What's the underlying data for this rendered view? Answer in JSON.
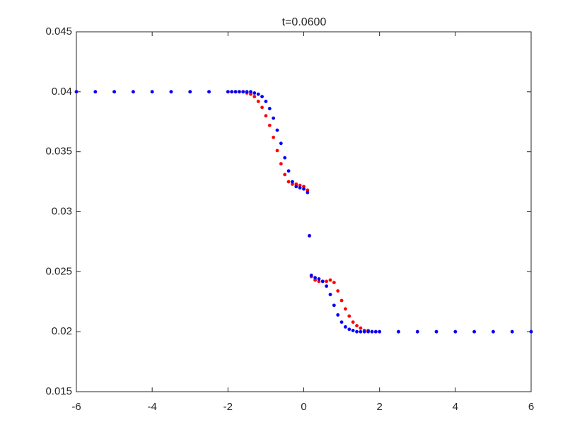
{
  "chart_data": {
    "type": "scatter",
    "title": "t=0.0600",
    "x": [
      -6,
      -5.5,
      -5,
      -4.5,
      -4,
      -3.5,
      -3,
      -2.5,
      -2,
      -1.9,
      -1.8,
      -1.7,
      -1.6,
      -1.5,
      -1.4,
      -1.3,
      -1.2,
      -1.1,
      -1,
      -0.9,
      -0.8,
      -0.7,
      -0.6,
      -0.5,
      -0.4,
      -0.3,
      -0.2,
      -0.1,
      0,
      0.1,
      0.15,
      0.2,
      0.3,
      0.4,
      0.5,
      0.6,
      0.7,
      0.8,
      0.9,
      1,
      1.1,
      1.2,
      1.3,
      1.4,
      1.5,
      1.6,
      1.7,
      1.8,
      1.9,
      2,
      2.5,
      3,
      3.5,
      4,
      4.5,
      5,
      5.5,
      6
    ],
    "series": [
      {
        "color": "#ff0000",
        "values": [
          0.04,
          0.04,
          0.04,
          0.04,
          0.04,
          0.04,
          0.04,
          0.04,
          0.04,
          0.04,
          0.04,
          0.04,
          0.04,
          0.0399,
          0.0398,
          0.0396,
          0.0392,
          0.0387,
          0.038,
          0.0372,
          0.0362,
          0.0351,
          0.034,
          0.0331,
          0.0325,
          0.0323,
          0.0323,
          0.0322,
          0.0321,
          0.0318,
          0.028,
          0.0246,
          0.0243,
          0.0242,
          0.0242,
          0.0242,
          0.0243,
          0.0241,
          0.0234,
          0.0226,
          0.0219,
          0.0213,
          0.0208,
          0.0205,
          0.0203,
          0.0201,
          0.0201,
          0.02,
          0.02,
          0.02,
          0.02,
          0.02,
          0.02,
          0.02,
          0.02,
          0.02,
          0.02,
          0.02
        ]
      },
      {
        "color": "#0000ff",
        "values": [
          0.04,
          0.04,
          0.04,
          0.04,
          0.04,
          0.04,
          0.04,
          0.04,
          0.04,
          0.04,
          0.04,
          0.04,
          0.04,
          0.04,
          0.04,
          0.0399,
          0.0398,
          0.0396,
          0.0392,
          0.0386,
          0.0378,
          0.0368,
          0.0357,
          0.0345,
          0.0334,
          0.0325,
          0.0321,
          0.032,
          0.0319,
          0.0316,
          0.028,
          0.0247,
          0.0245,
          0.0244,
          0.0242,
          0.0238,
          0.0231,
          0.0222,
          0.0214,
          0.0208,
          0.0204,
          0.0202,
          0.0201,
          0.02,
          0.02,
          0.02,
          0.02,
          0.02,
          0.02,
          0.02,
          0.02,
          0.02,
          0.02,
          0.02,
          0.02,
          0.02,
          0.02,
          0.02
        ]
      }
    ],
    "xlim": [
      -6,
      6
    ],
    "xticks": [
      -6,
      -4,
      -2,
      0,
      2,
      4,
      6
    ],
    "ylim": [
      0.015,
      0.045
    ],
    "yticks": [
      0.015,
      0.02,
      0.025,
      0.03,
      0.035,
      0.04,
      0.045
    ]
  }
}
